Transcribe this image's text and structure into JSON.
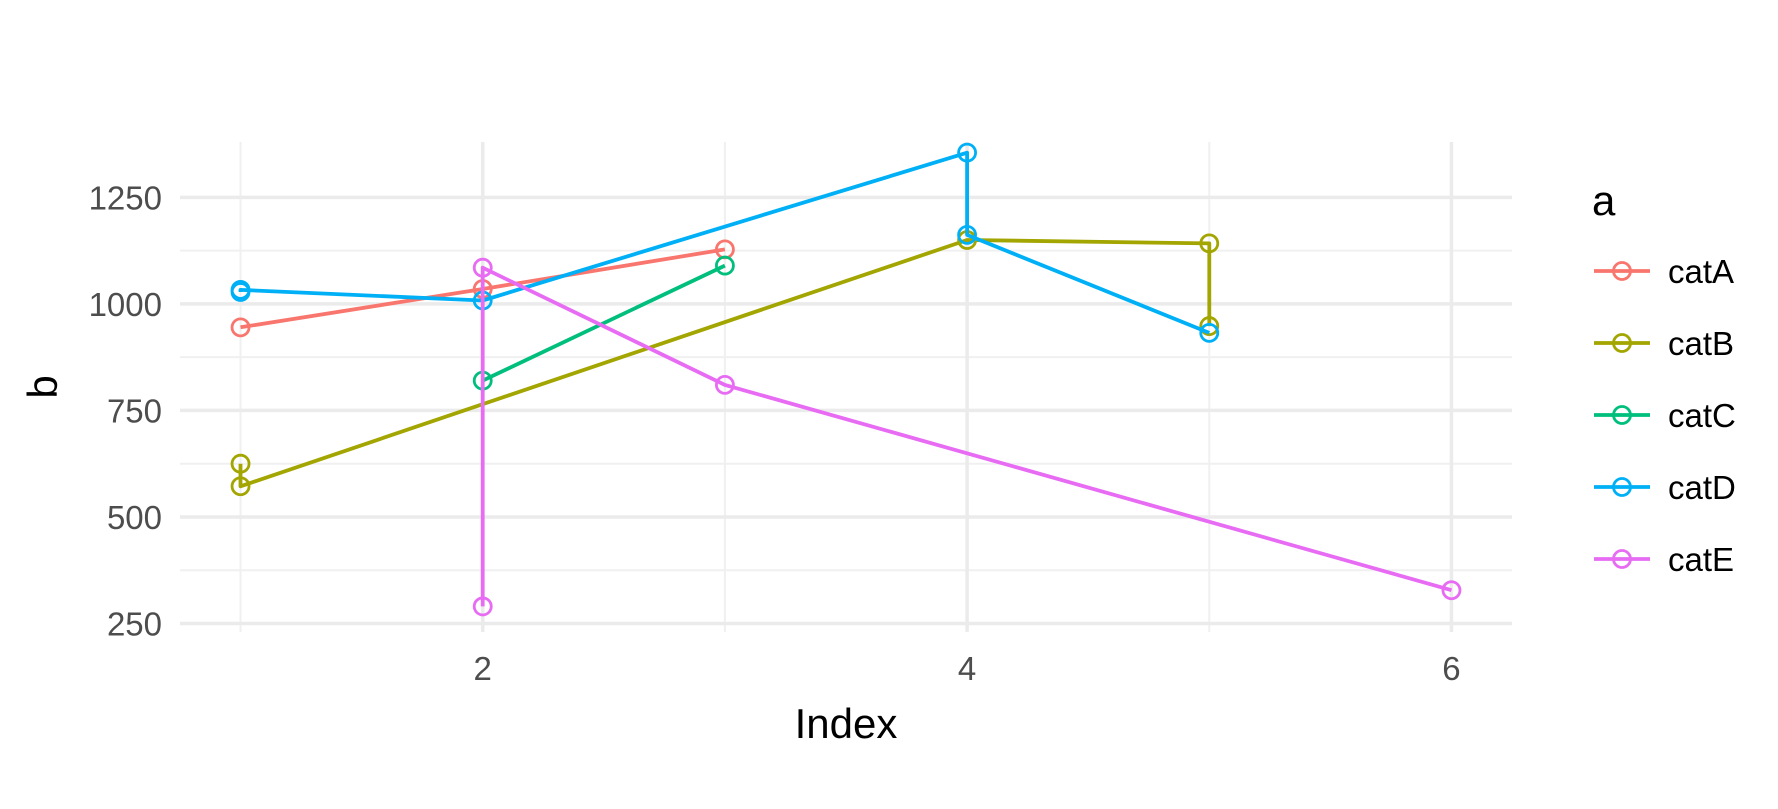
{
  "chart_data": {
    "type": "line",
    "xlabel": "Index",
    "ylabel": "b",
    "xlim": [
      0.75,
      6.25
    ],
    "ylim": [
      230,
      1380
    ],
    "x_ticks": [
      2,
      4,
      6
    ],
    "x_minor_ticks": [
      1,
      3,
      5
    ],
    "y_ticks": [
      250,
      500,
      750,
      1000,
      1250
    ],
    "y_minor_ticks": [
      375,
      625,
      875,
      1125
    ],
    "grid": true,
    "legend": {
      "title": "a",
      "position": "right"
    },
    "series": [
      {
        "name": "catA",
        "color": "#F8766D",
        "points": [
          [
            1,
            945
          ],
          [
            2,
            1035
          ],
          [
            3,
            1128
          ]
        ]
      },
      {
        "name": "catB",
        "color": "#A3A500",
        "points": [
          [
            1,
            625
          ],
          [
            1,
            572
          ],
          [
            4,
            1150
          ],
          [
            5,
            1142
          ],
          [
            5,
            948
          ]
        ]
      },
      {
        "name": "catC",
        "color": "#00BF7D",
        "points": [
          [
            2,
            820
          ],
          [
            3,
            1090
          ]
        ]
      },
      {
        "name": "catD",
        "color": "#00B0F6",
        "points": [
          [
            1,
            1028
          ],
          [
            1,
            1033
          ],
          [
            2,
            1008
          ],
          [
            4,
            1355
          ],
          [
            4,
            1162
          ],
          [
            5,
            932
          ]
        ]
      },
      {
        "name": "catE",
        "color": "#E76BF3",
        "points": [
          [
            2,
            290
          ],
          [
            2,
            1085
          ],
          [
            3,
            810
          ],
          [
            6,
            328
          ]
        ]
      }
    ]
  }
}
